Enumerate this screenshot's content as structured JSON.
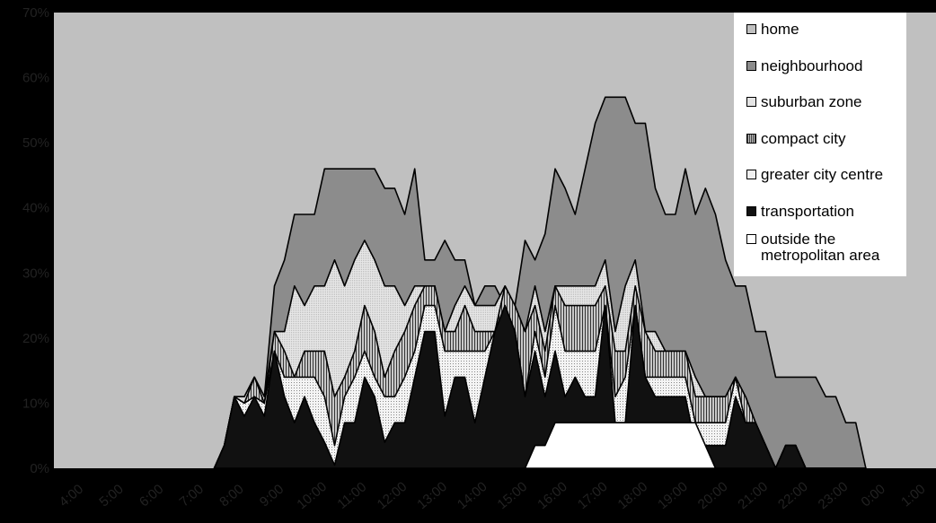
{
  "chart_data": {
    "type": "area",
    "stacked": true,
    "title": "",
    "xlabel": "",
    "ylabel": "",
    "ylim": [
      0,
      70
    ],
    "x_tick_labels": [
      "4:00",
      "5:00",
      "6:00",
      "7:00",
      "8:00",
      "9:00",
      "10:00",
      "11:00",
      "12:00",
      "13:00",
      "14:00",
      "15:00",
      "16:00",
      "17:00",
      "18:00",
      "19:00",
      "20:00",
      "21:00",
      "22:00",
      "23:00",
      "0:00",
      "1:00"
    ],
    "y_tick_labels": [
      "0%",
      "10%",
      "20%",
      "30%",
      "40%",
      "50%",
      "60%",
      "70%"
    ],
    "legend_position": "top-right",
    "series": [
      {
        "name": "home",
        "color": "#c0c0c0"
      },
      {
        "name": "neighbourhood",
        "color": "#8c8c8c"
      },
      {
        "name": "suburban zone",
        "color": "#e4e4e4"
      },
      {
        "name": "compact city",
        "color": "#999999"
      },
      {
        "name": "greater city centre",
        "color": "#f0f0f0"
      },
      {
        "name": "transportation",
        "color": "#111111"
      },
      {
        "name": "outside the metropolitan area",
        "color": "#ffffff"
      }
    ],
    "x_hours": [
      7.75,
      8.0,
      8.25,
      8.5,
      8.75,
      9.0,
      9.25,
      9.5,
      9.75,
      10.0,
      10.25,
      10.5,
      10.75,
      11.0,
      11.25,
      11.5,
      11.75,
      12.0,
      12.25,
      12.5,
      12.75,
      13.0,
      13.25,
      13.5,
      13.75,
      14.0,
      14.25,
      14.5,
      14.75,
      15.0,
      15.25,
      15.5,
      15.75,
      16.0,
      16.25,
      16.5,
      16.75,
      17.0,
      17.25,
      17.5,
      17.75,
      18.0,
      18.25,
      18.5,
      18.75,
      19.0,
      19.25,
      19.5,
      19.75,
      20.0,
      20.25,
      20.5,
      20.75,
      21.0,
      21.25,
      21.5,
      21.75,
      22.0,
      22.25,
      22.5,
      22.75,
      23.0,
      23.25,
      23.5
    ],
    "outside": [
      0,
      0,
      0,
      0,
      0,
      0,
      0,
      0,
      0,
      0,
      0,
      0,
      0,
      0,
      0,
      0,
      0,
      0,
      0,
      0,
      0,
      0,
      0,
      0,
      0,
      0,
      0,
      0,
      0,
      0,
      0,
      3.5,
      3.5,
      7,
      7,
      7,
      7,
      7,
      7,
      7,
      7,
      7,
      7,
      7,
      7,
      7,
      7,
      7,
      3.5,
      0,
      0,
      0,
      0,
      0,
      0,
      0,
      0,
      0,
      0,
      0,
      0,
      0,
      0,
      0
    ],
    "transport": [
      3.5,
      11,
      8,
      11,
      8,
      18,
      11,
      7,
      11,
      7,
      4,
      0.5,
      7,
      7,
      14,
      11,
      4,
      7,
      7,
      14,
      21,
      21,
      8,
      14,
      14,
      7,
      14,
      21,
      25,
      21,
      11,
      18,
      11,
      18,
      11,
      14,
      11,
      11,
      25,
      7,
      7,
      25,
      14,
      11,
      11,
      11,
      11,
      3.5,
      3.5,
      3.5,
      3.5,
      11,
      7,
      7,
      3.5,
      0,
      3.5,
      3.5,
      0,
      0,
      0,
      0,
      0,
      0
    ],
    "city_centre": [
      3.5,
      11,
      10,
      11,
      10,
      18,
      14,
      14,
      14,
      14,
      11,
      3.5,
      11,
      14,
      18,
      14,
      11,
      11,
      14,
      18,
      25,
      25,
      18,
      18,
      18,
      18,
      18,
      21,
      25,
      21,
      11,
      21,
      14,
      25,
      18,
      18,
      18,
      18,
      25,
      11,
      14,
      25,
      14,
      14,
      14,
      14,
      14,
      7,
      7,
      7,
      7,
      14,
      7,
      7,
      3.5,
      0,
      3.5,
      3.5,
      0,
      0,
      0,
      0,
      0,
      0
    ],
    "compact": [
      3.5,
      11,
      10,
      14,
      10,
      21,
      18,
      14,
      18,
      18,
      18,
      11,
      14,
      18,
      25,
      21,
      14,
      18,
      21,
      25,
      28,
      28,
      21,
      21,
      25,
      21,
      21,
      21,
      28,
      25,
      21,
      25,
      18,
      28,
      25,
      25,
      25,
      25,
      28,
      18,
      18,
      28,
      21,
      18,
      18,
      18,
      18,
      11,
      11,
      11,
      11,
      14,
      11,
      7,
      3.5,
      0,
      3.5,
      3.5,
      0,
      0,
      0,
      0,
      0,
      0
    ],
    "suburban": [
      3.5,
      11,
      11,
      14,
      11,
      21,
      21,
      28,
      25,
      28,
      28,
      32,
      28,
      32,
      35,
      32,
      28,
      28,
      25,
      28,
      28,
      28,
      21,
      25,
      28,
      25,
      25,
      25,
      28,
      25,
      21,
      28,
      21,
      28,
      28,
      28,
      28,
      28,
      32,
      21,
      28,
      32,
      21,
      21,
      18,
      18,
      18,
      14,
      11,
      11,
      11,
      14,
      11,
      7,
      3.5,
      0,
      3.5,
      3.5,
      0,
      0,
      0,
      0,
      0,
      0
    ],
    "neighbourhood": [
      3.5,
      11,
      11,
      14,
      11,
      28,
      32,
      39,
      39,
      39,
      46,
      46,
      46,
      46,
      46,
      46,
      43,
      43,
      39,
      46,
      32,
      32,
      35,
      32,
      32,
      25,
      28,
      28,
      25,
      25,
      35,
      32,
      36,
      46,
      43,
      39,
      46,
      53,
      57,
      57,
      57,
      53,
      53,
      43,
      39,
      39,
      46,
      39,
      43,
      39,
      32,
      28,
      28,
      21,
      21,
      14,
      14,
      14,
      14,
      14,
      11,
      11,
      7,
      7
    ],
    "home": [
      3.5,
      11,
      11,
      14,
      11,
      28,
      32,
      39,
      39,
      39,
      46,
      46,
      46,
      46,
      46,
      46,
      43,
      43,
      39,
      46,
      32,
      32,
      35,
      32,
      32,
      25,
      28,
      28,
      25,
      25,
      35,
      32,
      36,
      46,
      43,
      39,
      46,
      53,
      57,
      57,
      57,
      53,
      53,
      43,
      39,
      39,
      46,
      39,
      43,
      39,
      32,
      28,
      28,
      21,
      21,
      14,
      14,
      14,
      14,
      14,
      11,
      11,
      7,
      7
    ]
  }
}
